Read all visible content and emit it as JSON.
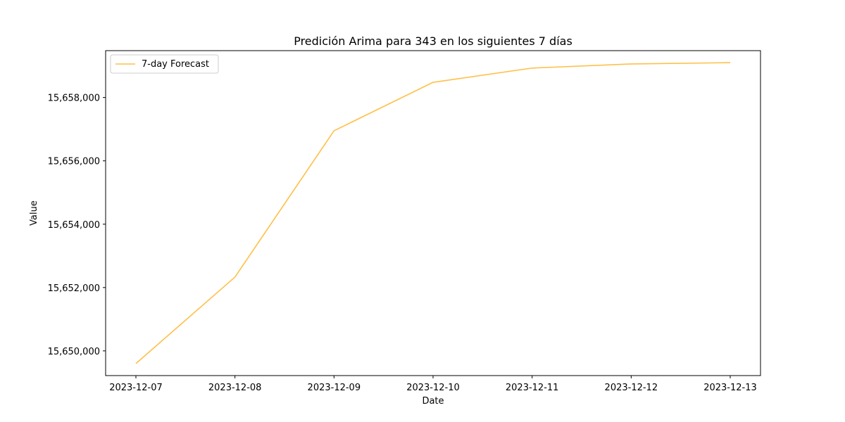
{
  "chart_data": {
    "type": "line",
    "title": "Predición Arima para 343 en los siguientes 7 días",
    "xlabel": "Date",
    "ylabel": "Value",
    "x": [
      "2023-12-07",
      "2023-12-08",
      "2023-12-09",
      "2023-12-10",
      "2023-12-11",
      "2023-12-12",
      "2023-12-13"
    ],
    "series": [
      {
        "name": "7-day Forecast",
        "color": "#ffbf47",
        "values": [
          15649600,
          15652330,
          15656950,
          15658480,
          15658930,
          15659060,
          15659100
        ]
      }
    ],
    "y_ticks": [
      15650000,
      15652000,
      15654000,
      15656000,
      15658000
    ],
    "y_tick_labels": [
      "15,650,000",
      "15,652,000",
      "15,654,000",
      "15,656,000",
      "15,658,000"
    ],
    "ylim": [
      15649220,
      15659480
    ],
    "grid": false,
    "legend_position": "top-left"
  }
}
